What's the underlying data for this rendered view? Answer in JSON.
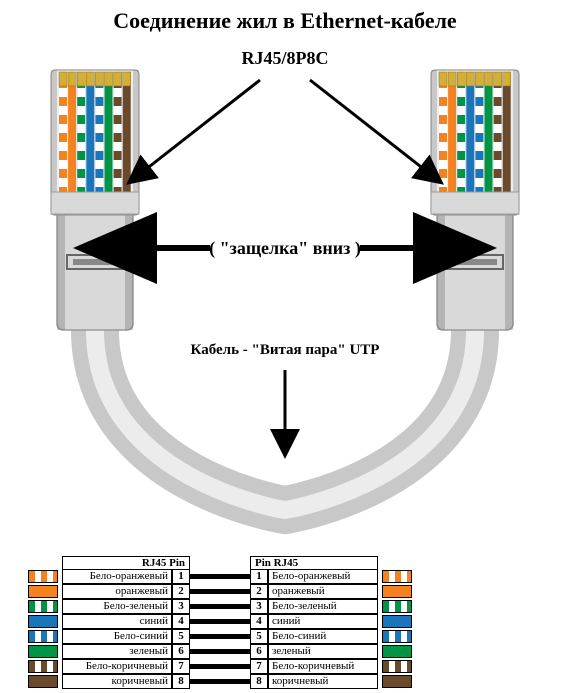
{
  "title": "Соединение жил в Ethernet-кабеле",
  "connector_label": "RJ45/8P8C",
  "clip_label": "( \"защелка\" вниз )",
  "cable_label": "Кабель - \"Витая пара\" UTP",
  "colors": {
    "background": "#ffffff",
    "text": "#000000",
    "connector_body": "#d9d9d9",
    "connector_edge": "#9a9a9a",
    "connector_shadow": "#6f6f6f",
    "cable_outer": "#c8c8c8",
    "cable_highlight": "#f2f2f2",
    "wire_orange": "#f58220",
    "wire_green": "#009444",
    "wire_blue": "#1b75bb",
    "wire_brown": "#6b4a2b",
    "wire_white": "#ffffff"
  },
  "pinout": {
    "header_left": "RJ45   Pin",
    "header_right": "Pin   RJ45",
    "rows": [
      {
        "name": "Бело-оранжевый",
        "pin": "1",
        "sw1": "#ffffff",
        "sw2": "#f58220",
        "striped": true
      },
      {
        "name": "оранжевый",
        "pin": "2",
        "sw1": "#f58220",
        "sw2": "#f58220",
        "striped": false
      },
      {
        "name": "Бело-зеленый",
        "pin": "3",
        "sw1": "#ffffff",
        "sw2": "#009444",
        "striped": true
      },
      {
        "name": "синий",
        "pin": "4",
        "sw1": "#1b75bb",
        "sw2": "#1b75bb",
        "striped": false
      },
      {
        "name": "Бело-синий",
        "pin": "5",
        "sw1": "#ffffff",
        "sw2": "#1b75bb",
        "striped": true
      },
      {
        "name": "зеленый",
        "pin": "6",
        "sw1": "#009444",
        "sw2": "#009444",
        "striped": false
      },
      {
        "name": "Бело-коричневый",
        "pin": "7",
        "sw1": "#ffffff",
        "sw2": "#6b4a2b",
        "striped": true
      },
      {
        "name": "коричневый",
        "pin": "8",
        "sw1": "#6b4a2b",
        "sw2": "#6b4a2b",
        "striped": false
      }
    ],
    "wire_colors_order": [
      "#f58220",
      "#f58220",
      "#009444",
      "#1b75bb",
      "#1b75bb",
      "#009444",
      "#6b4a2b",
      "#6b4a2b"
    ],
    "wire_striped_order": [
      true,
      false,
      true,
      false,
      true,
      false,
      true,
      false
    ]
  }
}
